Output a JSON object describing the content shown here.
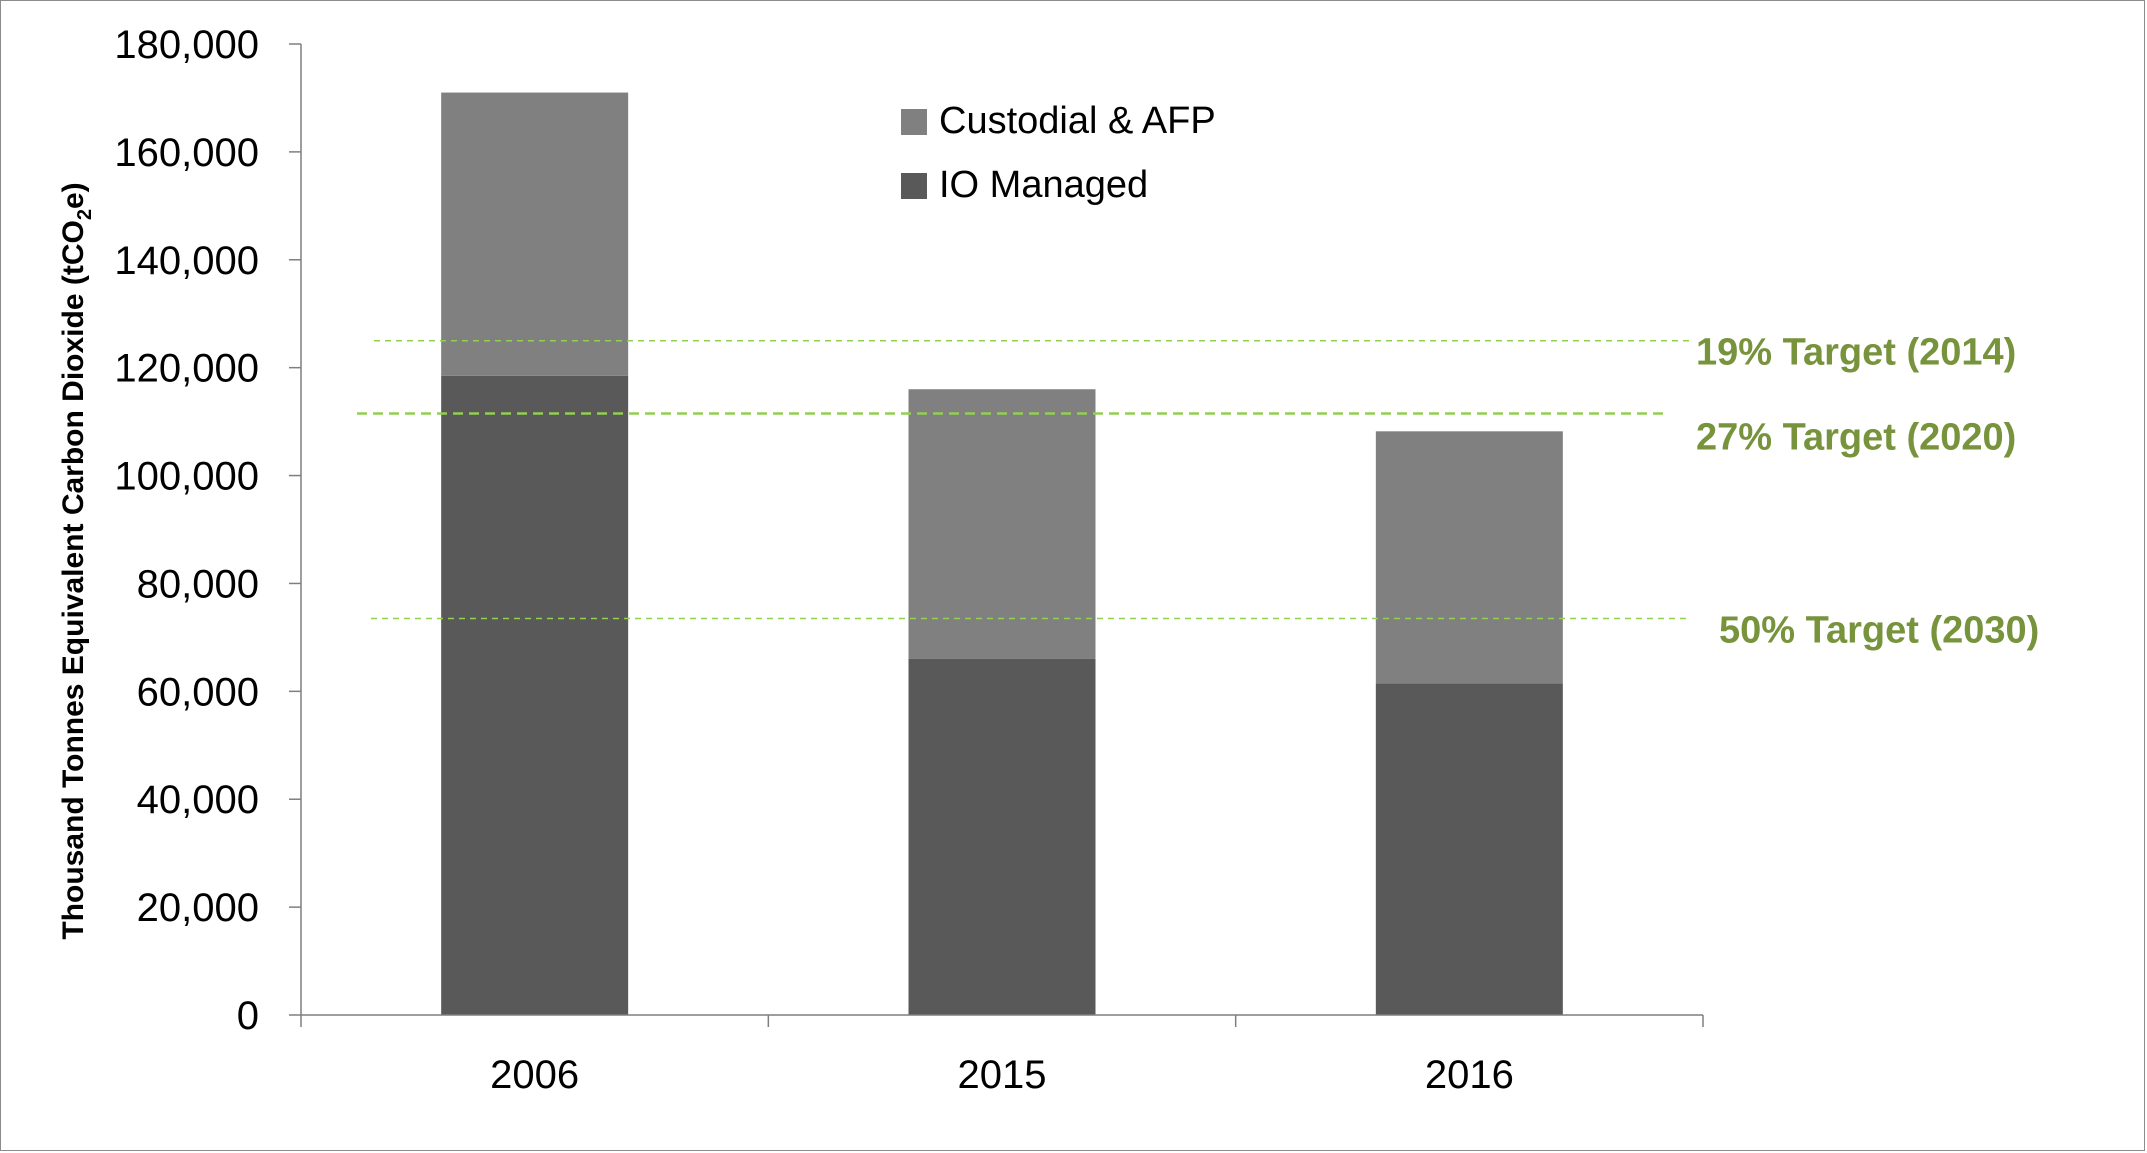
{
  "chart_data": {
    "type": "bar",
    "stacked": true,
    "categories": [
      "2006",
      "2015",
      "2016"
    ],
    "series": [
      {
        "name": "IO Managed",
        "values": [
          118500,
          66000,
          61500
        ],
        "color": "#595959"
      },
      {
        "name": "Custodial & AFP",
        "values": [
          52500,
          50000,
          46700
        ],
        "color": "#808080"
      }
    ],
    "ylabel": "Thousand Tonnes Equivalent Carbon Dioxide (tCO",
    "ylabel_sub": "2",
    "ylabel_end": "e)",
    "ylim": [
      0,
      180000
    ],
    "y_ticks": [
      "0",
      "20,000",
      "40,000",
      "60,000",
      "80,000",
      "100,000",
      "120,000",
      "140,000",
      "160,000",
      "180,000"
    ],
    "y_tick_values": [
      0,
      20000,
      40000,
      60000,
      80000,
      100000,
      120000,
      140000,
      160000,
      180000
    ],
    "legend_position": "top-center",
    "grid": false,
    "target_lines": [
      {
        "label": "19% Target (2014)",
        "value": 125000
      },
      {
        "label": "27% Target (2020)",
        "value": 111500
      },
      {
        "label": "50% Target (2030)",
        "value": 73500
      }
    ],
    "target_color": "#77933c",
    "target_line_color": "#92d050"
  }
}
